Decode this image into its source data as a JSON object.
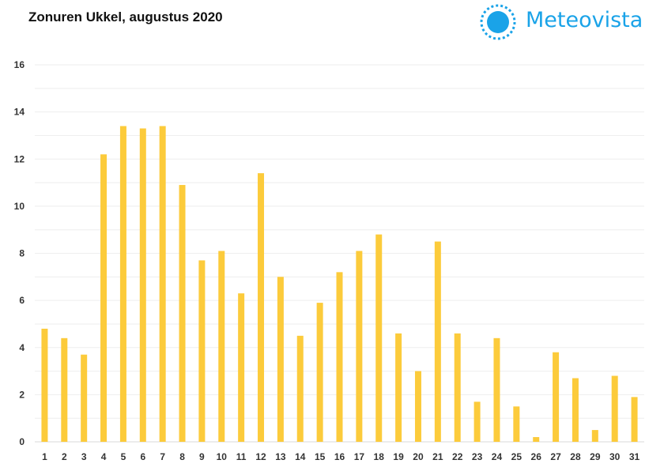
{
  "title": "Zonuren Ukkel, augustus 2020",
  "logo": {
    "text": "Meteovista",
    "icon": "sun-icon",
    "color": "#1aa3e8"
  },
  "chart_data": {
    "type": "bar",
    "title": "Zonuren Ukkel, augustus 2020",
    "xlabel": "",
    "ylabel": "",
    "ylim": [
      0,
      16
    ],
    "yticks": [
      0,
      2,
      4,
      6,
      8,
      10,
      12,
      14,
      16
    ],
    "grid": true,
    "bar_color": "#fccb3b",
    "categories": [
      "1",
      "2",
      "3",
      "4",
      "5",
      "6",
      "7",
      "8",
      "9",
      "10",
      "11",
      "12",
      "13",
      "14",
      "15",
      "16",
      "17",
      "18",
      "19",
      "20",
      "21",
      "22",
      "23",
      "24",
      "25",
      "26",
      "27",
      "28",
      "29",
      "30",
      "31"
    ],
    "values": [
      4.8,
      4.4,
      3.7,
      12.2,
      13.4,
      13.3,
      13.4,
      10.9,
      7.7,
      8.1,
      6.3,
      11.4,
      7.0,
      4.5,
      5.9,
      7.2,
      8.1,
      8.8,
      4.6,
      3.0,
      8.5,
      4.6,
      1.7,
      4.4,
      1.5,
      0.2,
      3.8,
      2.7,
      0.5,
      2.8,
      1.9
    ]
  }
}
